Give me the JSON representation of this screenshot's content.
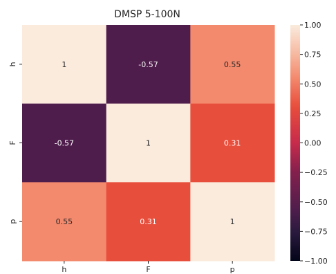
{
  "chart_data": {
    "type": "heatmap",
    "title": "DMSP 5-100N",
    "x_categories": [
      "h",
      "F",
      "p"
    ],
    "y_categories": [
      "h",
      "F",
      "p"
    ],
    "values": [
      [
        1,
        -0.57,
        0.55
      ],
      [
        -0.57,
        1,
        0.31
      ],
      [
        0.55,
        0.31,
        1
      ]
    ],
    "cell_labels": [
      [
        "1",
        "-0.57",
        "0.55"
      ],
      [
        "-0.57",
        "1",
        "0.31"
      ],
      [
        "0.55",
        "0.31",
        "1"
      ]
    ],
    "colorbar": {
      "min": -1.0,
      "max": 1.0,
      "ticks": [
        1.0,
        0.75,
        0.5,
        0.25,
        0.0,
        -0.25,
        -0.5,
        -0.75,
        -1.0
      ],
      "tick_labels": [
        "1.00",
        "0.75",
        "0.50",
        "0.25",
        "0.00",
        "−0.25",
        "−0.50",
        "−0.75",
        "−1.00"
      ]
    },
    "colormap_stops": [
      {
        "v": -1.0,
        "color": "#03051a"
      },
      {
        "v": -0.75,
        "color": "#2b1a3e"
      },
      {
        "v": -0.57,
        "color": "#4f1d4c"
      },
      {
        "v": -0.25,
        "color": "#83204d"
      },
      {
        "v": 0.0,
        "color": "#c72b4b"
      },
      {
        "v": 0.31,
        "color": "#e84e3c"
      },
      {
        "v": 0.55,
        "color": "#f3896d"
      },
      {
        "v": 0.75,
        "color": "#f6b8a0"
      },
      {
        "v": 1.0,
        "color": "#faebdd"
      }
    ],
    "grid": false
  }
}
